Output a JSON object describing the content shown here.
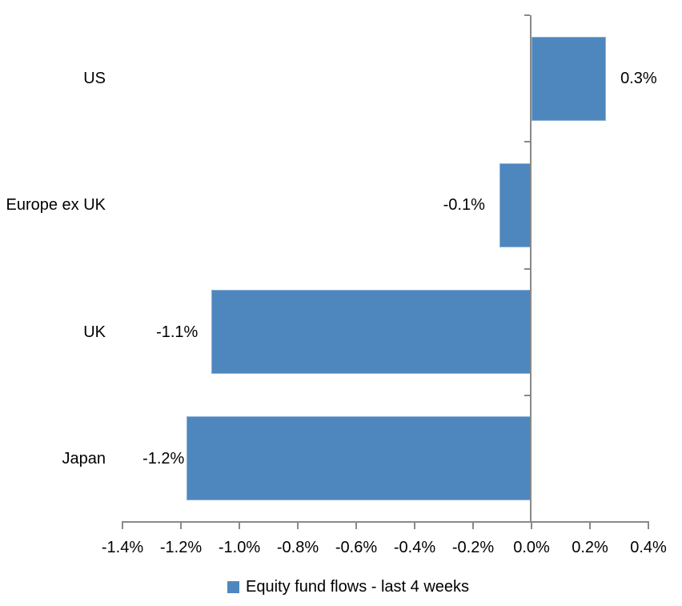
{
  "chart_data": {
    "type": "bar",
    "orientation": "horizontal",
    "title": "",
    "categories": [
      "US",
      "Europe ex UK",
      "UK",
      "Japan"
    ],
    "series": [
      {
        "name": "Equity fund flows - last 4 weeks",
        "values": [
          0.3,
          -0.1,
          -1.1,
          -1.2
        ],
        "unit": "%"
      }
    ],
    "data_labels": [
      "0.3%",
      "-0.1%",
      "-1.1%",
      "-1.2%"
    ],
    "bar_render_values_pct": [
      0.255,
      -0.11,
      -1.095,
      -1.18
    ],
    "x_axis": {
      "min": -1.4,
      "max": 0.4,
      "tick_step": 0.2,
      "tick_labels": [
        "-1.4%",
        "-1.2%",
        "-1.0%",
        "-0.8%",
        "-0.6%",
        "-0.4%",
        "-0.2%",
        "0.0%",
        "0.2%",
        "0.4%"
      ]
    },
    "grid": false,
    "legend": {
      "position": "bottom-center",
      "label": "Equity fund flows - last 4 weeks"
    },
    "colors": {
      "bar_fill": "#4e87be",
      "axis_line": "#898989",
      "text": "#000000",
      "background": "#ffffff"
    }
  }
}
